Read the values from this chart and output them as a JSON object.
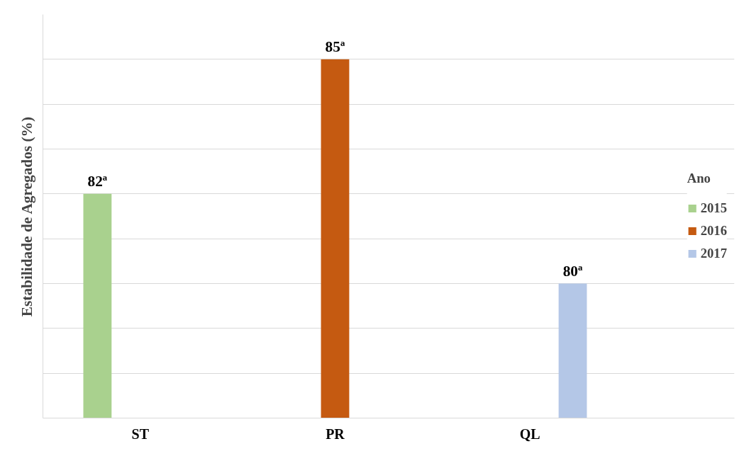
{
  "chart_data": {
    "type": "bar",
    "ylabel": "Estabilidade de Agregados (%)",
    "legend_title": "Ano",
    "categories": [
      "ST",
      "PR",
      "QL"
    ],
    "series": [
      {
        "name": "2015",
        "color": "#a9d18e",
        "values": [
          82,
          null,
          null
        ],
        "value_labels": [
          "82ª",
          null,
          null
        ]
      },
      {
        "name": "2016",
        "color": "#c55a11",
        "values": [
          null,
          85,
          null
        ],
        "value_labels": [
          null,
          "85ª",
          null
        ]
      },
      {
        "name": "2017",
        "color": "#b4c7e7",
        "values": [
          null,
          null,
          80
        ],
        "value_labels": [
          null,
          null,
          "80ª"
        ]
      }
    ],
    "ylim": [
      77,
      86
    ],
    "tick_labels": "x",
    "grid": "y",
    "legend": "right"
  }
}
